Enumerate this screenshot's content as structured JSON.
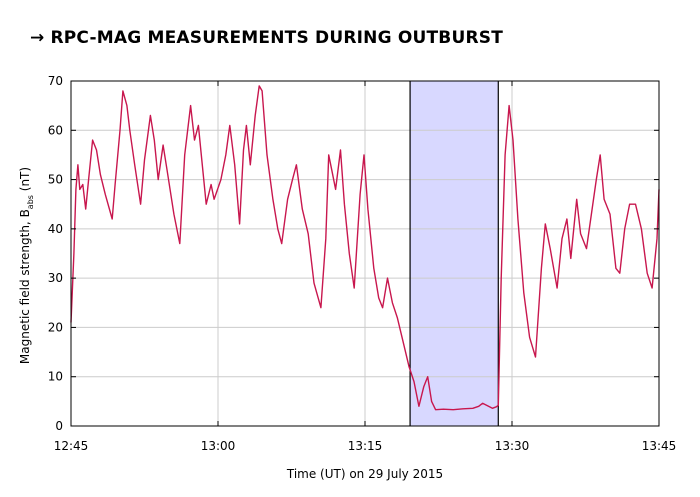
{
  "title": "RPC-MAG MEASUREMENTS DURING OUTBURST",
  "title_arrow": "→",
  "chart_data": {
    "type": "line",
    "xlabel": "Time (UT) on 29 July 2015",
    "ylabel_main": "Magnetic field strength, B",
    "ylabel_sub": "abs",
    "ylabel_unit": " (nT)",
    "x_unit": "minutes after 12:45",
    "xlim": [
      0,
      60
    ],
    "ylim": [
      0,
      70
    ],
    "x_ticks": [
      {
        "value": 0,
        "label": "12:45"
      },
      {
        "value": 15,
        "label": "13:00"
      },
      {
        "value": 30,
        "label": "13:15"
      },
      {
        "value": 45,
        "label": "13:30"
      },
      {
        "value": 60,
        "label": "13:45"
      }
    ],
    "y_ticks": [
      0,
      10,
      20,
      30,
      40,
      50,
      60,
      70
    ],
    "grid": true,
    "highlight_region": {
      "x_start": 34.6,
      "x_end": 43.6,
      "color": "#d8d8ff"
    },
    "line_color": "#c8174e",
    "series": [
      {
        "values": [
          [
            0.0,
            21
          ],
          [
            0.3,
            35
          ],
          [
            0.5,
            48
          ],
          [
            0.7,
            53
          ],
          [
            0.9,
            48
          ],
          [
            1.2,
            49
          ],
          [
            1.5,
            44
          ],
          [
            1.8,
            50
          ],
          [
            2.2,
            58
          ],
          [
            2.6,
            56
          ],
          [
            3.0,
            51
          ],
          [
            3.5,
            47
          ],
          [
            4.2,
            42
          ],
          [
            4.5,
            49
          ],
          [
            5.0,
            60
          ],
          [
            5.3,
            68
          ],
          [
            5.7,
            65
          ],
          [
            6.0,
            60
          ],
          [
            6.5,
            53
          ],
          [
            7.1,
            45
          ],
          [
            7.5,
            54
          ],
          [
            8.1,
            63
          ],
          [
            8.5,
            58
          ],
          [
            8.9,
            50
          ],
          [
            9.4,
            57
          ],
          [
            9.8,
            52
          ],
          [
            10.5,
            43
          ],
          [
            11.1,
            37
          ],
          [
            11.6,
            55
          ],
          [
            12.2,
            65
          ],
          [
            12.6,
            58
          ],
          [
            13.0,
            61
          ],
          [
            13.3,
            55
          ],
          [
            13.8,
            45
          ],
          [
            14.3,
            49
          ],
          [
            14.6,
            46
          ],
          [
            15.3,
            50
          ],
          [
            15.8,
            55
          ],
          [
            16.2,
            61
          ],
          [
            16.7,
            53
          ],
          [
            17.2,
            41
          ],
          [
            17.6,
            56
          ],
          [
            17.9,
            61
          ],
          [
            18.3,
            53
          ],
          [
            18.8,
            63
          ],
          [
            19.2,
            69
          ],
          [
            19.5,
            68
          ],
          [
            20.0,
            55
          ],
          [
            20.6,
            46
          ],
          [
            21.1,
            40
          ],
          [
            21.5,
            37
          ],
          [
            22.1,
            46
          ],
          [
            22.6,
            50
          ],
          [
            23.0,
            53
          ],
          [
            23.6,
            44
          ],
          [
            24.2,
            39
          ],
          [
            24.8,
            29
          ],
          [
            25.5,
            24
          ],
          [
            26.0,
            38
          ],
          [
            26.3,
            55
          ],
          [
            26.6,
            52
          ],
          [
            27.0,
            48
          ],
          [
            27.5,
            56
          ],
          [
            27.9,
            45
          ],
          [
            28.4,
            35
          ],
          [
            28.9,
            28
          ],
          [
            29.5,
            47
          ],
          [
            29.9,
            55
          ],
          [
            30.3,
            44
          ],
          [
            30.9,
            32
          ],
          [
            31.4,
            26
          ],
          [
            31.8,
            24
          ],
          [
            32.3,
            30
          ],
          [
            32.8,
            25
          ],
          [
            33.3,
            22
          ],
          [
            33.9,
            17
          ],
          [
            34.5,
            12
          ],
          [
            35.0,
            9
          ],
          [
            35.5,
            4
          ],
          [
            36.0,
            8
          ],
          [
            36.4,
            10
          ],
          [
            36.8,
            5
          ],
          [
            37.2,
            3.3
          ],
          [
            38.0,
            3.4
          ],
          [
            39.0,
            3.3
          ],
          [
            40.0,
            3.5
          ],
          [
            41.0,
            3.6
          ],
          [
            41.6,
            4.0
          ],
          [
            42.0,
            4.6
          ],
          [
            42.6,
            4.0
          ],
          [
            43.0,
            3.6
          ],
          [
            43.4,
            3.9
          ],
          [
            43.6,
            4.2
          ],
          [
            43.9,
            30
          ],
          [
            44.3,
            55
          ],
          [
            44.7,
            65
          ],
          [
            45.1,
            58
          ],
          [
            45.6,
            42
          ],
          [
            46.2,
            27
          ],
          [
            46.8,
            18
          ],
          [
            47.4,
            14
          ],
          [
            48.0,
            32
          ],
          [
            48.4,
            41
          ],
          [
            48.9,
            36
          ],
          [
            49.6,
            28
          ],
          [
            50.1,
            38
          ],
          [
            50.6,
            42
          ],
          [
            51.0,
            34
          ],
          [
            51.6,
            46
          ],
          [
            52.0,
            39
          ],
          [
            52.6,
            36
          ],
          [
            53.1,
            43
          ],
          [
            53.6,
            50
          ],
          [
            54.0,
            55
          ],
          [
            54.4,
            46
          ],
          [
            55.0,
            43
          ],
          [
            55.6,
            32
          ],
          [
            56.0,
            31
          ],
          [
            56.5,
            40
          ],
          [
            57.0,
            45
          ],
          [
            57.6,
            45
          ],
          [
            58.2,
            40
          ],
          [
            58.8,
            31
          ],
          [
            59.3,
            28
          ],
          [
            59.8,
            38
          ],
          [
            60.0,
            48
          ]
        ]
      }
    ]
  }
}
